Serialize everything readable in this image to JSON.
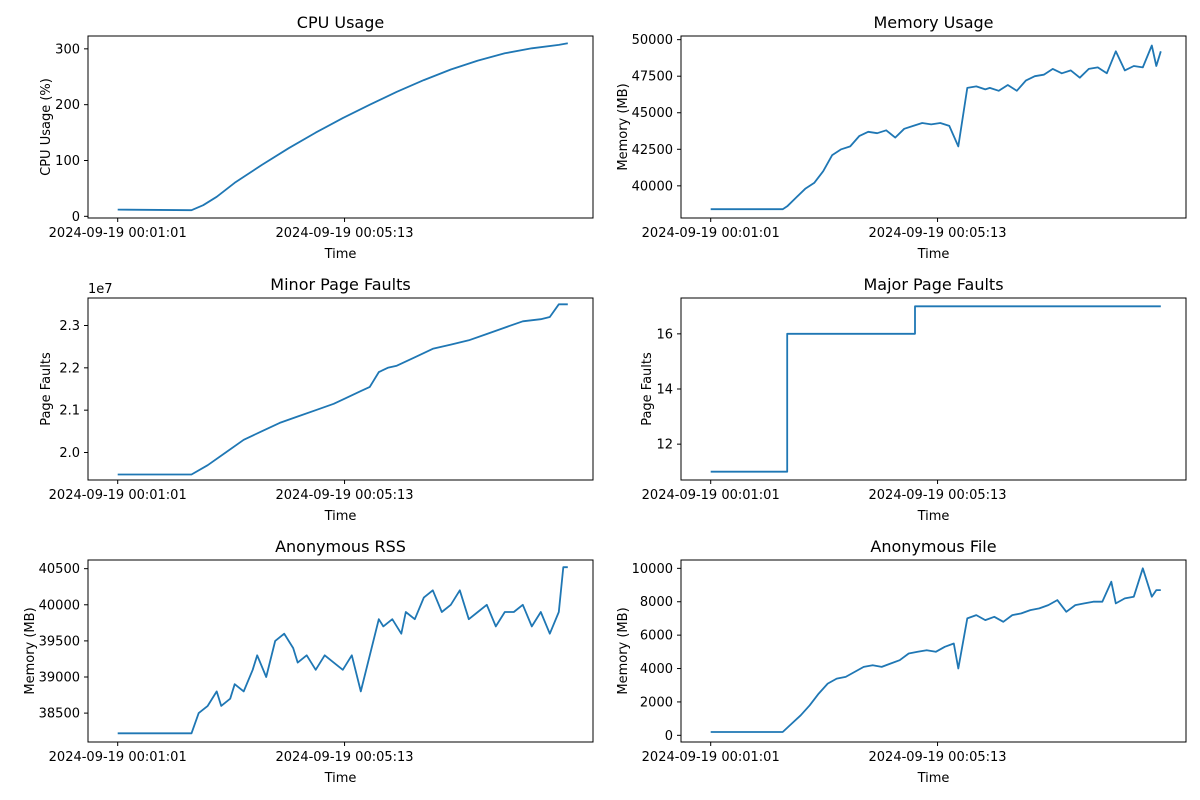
{
  "figure": {
    "background": "#ffffff",
    "line_color": "#1f77b4",
    "axis_color": "#000000"
  },
  "chart_data": [
    {
      "id": "cpu",
      "type": "line",
      "title": "CPU Usage",
      "xlabel": "Time",
      "ylabel": "CPU Usage (%)",
      "offset_text": "",
      "x_ticks": [
        {
          "x": 0,
          "label": "2024-09-19 00:01:01"
        },
        {
          "x": 252,
          "label": "2024-09-19 00:05:13"
        }
      ],
      "xlim": [
        -33,
        528
      ],
      "ylim": [
        -3,
        323
      ],
      "y_ticks": [
        0,
        100,
        200,
        300
      ],
      "y_tick_labels": [
        "0",
        "100",
        "200",
        "300"
      ],
      "series": [
        {
          "x": [
            0,
            82,
            95,
            110,
            130,
            160,
            190,
            220,
            250,
            280,
            310,
            340,
            370,
            400,
            430,
            460,
            490,
            500
          ],
          "y": [
            12,
            11,
            20,
            35,
            60,
            92,
            122,
            150,
            176,
            200,
            223,
            244,
            263,
            279,
            292,
            301,
            307,
            310
          ]
        }
      ]
    },
    {
      "id": "memory",
      "type": "line",
      "title": "Memory Usage",
      "xlabel": "Time",
      "ylabel": "Memory (MB)",
      "offset_text": "",
      "x_ticks": [
        {
          "x": 0,
          "label": "2024-09-19 00:01:01"
        },
        {
          "x": 252,
          "label": "2024-09-19 00:05:13"
        }
      ],
      "xlim": [
        -33,
        528
      ],
      "ylim": [
        37800,
        50250
      ],
      "y_ticks": [
        40000,
        42500,
        45000,
        47500,
        50000
      ],
      "y_tick_labels": [
        "40000",
        "42500",
        "45000",
        "47500",
        "50000"
      ],
      "series": [
        {
          "x": [
            0,
            80,
            85,
            95,
            105,
            115,
            125,
            135,
            145,
            155,
            165,
            175,
            185,
            195,
            205,
            215,
            225,
            235,
            245,
            255,
            265,
            275,
            285,
            295,
            305,
            310,
            320,
            330,
            340,
            350,
            360,
            370,
            380,
            390,
            400,
            410,
            420,
            430,
            440,
            450,
            460,
            470,
            480,
            490,
            495,
            500
          ],
          "y": [
            38400,
            38400,
            38600,
            39200,
            39800,
            40200,
            41000,
            42100,
            42500,
            42700,
            43400,
            43700,
            43600,
            43800,
            43300,
            43900,
            44100,
            44300,
            44200,
            44300,
            44100,
            42700,
            46700,
            46800,
            46600,
            46700,
            46500,
            46900,
            46500,
            47200,
            47500,
            47600,
            48000,
            47700,
            47900,
            47400,
            48000,
            48100,
            47700,
            49200,
            47900,
            48200,
            48100,
            49600,
            48200,
            49200
          ]
        }
      ]
    },
    {
      "id": "minor-faults",
      "type": "line",
      "title": "Minor Page Faults",
      "xlabel": "Time",
      "ylabel": "Page Faults",
      "offset_text": "1e7",
      "x_ticks": [
        {
          "x": 0,
          "label": "2024-09-19 00:01:01"
        },
        {
          "x": 252,
          "label": "2024-09-19 00:05:13"
        }
      ],
      "xlim": [
        -33,
        528
      ],
      "ylim": [
        19.35,
        23.65
      ],
      "y_ticks": [
        20.0,
        21.0,
        22.0,
        23.0
      ],
      "y_tick_labels": [
        "2.0",
        "2.1",
        "2.2",
        "2.3"
      ],
      "series": [
        {
          "x": [
            0,
            82,
            100,
            120,
            140,
            160,
            180,
            200,
            220,
            240,
            250,
            260,
            270,
            280,
            290,
            300,
            310,
            330,
            350,
            370,
            390,
            410,
            430,
            450,
            470,
            480,
            490,
            500
          ],
          "y": [
            19.48,
            19.48,
            19.7,
            20.0,
            20.3,
            20.5,
            20.7,
            20.85,
            21.0,
            21.15,
            21.25,
            21.35,
            21.45,
            21.55,
            21.9,
            22.0,
            22.05,
            22.25,
            22.45,
            22.55,
            22.65,
            22.8,
            22.95,
            23.1,
            23.15,
            23.2,
            23.5,
            23.5
          ]
        }
      ]
    },
    {
      "id": "major-faults",
      "type": "line",
      "title": "Major Page Faults",
      "xlabel": "Time",
      "ylabel": "Page Faults",
      "offset_text": "",
      "x_ticks": [
        {
          "x": 0,
          "label": "2024-09-19 00:01:01"
        },
        {
          "x": 252,
          "label": "2024-09-19 00:05:13"
        }
      ],
      "xlim": [
        -33,
        528
      ],
      "ylim": [
        10.7,
        17.3
      ],
      "y_ticks": [
        12,
        14,
        16
      ],
      "y_tick_labels": [
        "12",
        "14",
        "16"
      ],
      "series": [
        {
          "x": [
            0,
            85,
            85,
            227,
            227,
            500
          ],
          "y": [
            11,
            11,
            16,
            16,
            17,
            17
          ]
        }
      ]
    },
    {
      "id": "anon-rss",
      "type": "line",
      "title": "Anonymous RSS",
      "xlabel": "Time",
      "ylabel": "Memory (MB)",
      "offset_text": "",
      "x_ticks": [
        {
          "x": 0,
          "label": "2024-09-19 00:01:01"
        },
        {
          "x": 252,
          "label": "2024-09-19 00:05:13"
        }
      ],
      "xlim": [
        -33,
        528
      ],
      "ylim": [
        38100,
        40620
      ],
      "y_ticks": [
        38500,
        39000,
        39500,
        40000,
        40500
      ],
      "y_tick_labels": [
        "38500",
        "39000",
        "39500",
        "40000",
        "40500"
      ],
      "series": [
        {
          "x": [
            0,
            82,
            90,
            100,
            110,
            115,
            125,
            130,
            140,
            150,
            155,
            165,
            175,
            185,
            195,
            200,
            210,
            220,
            230,
            240,
            250,
            260,
            270,
            290,
            295,
            305,
            315,
            320,
            330,
            340,
            350,
            360,
            370,
            380,
            390,
            400,
            410,
            420,
            430,
            440,
            450,
            460,
            470,
            480,
            490,
            495,
            500
          ],
          "y": [
            38220,
            38220,
            38500,
            38600,
            38800,
            38600,
            38700,
            38900,
            38800,
            39100,
            39300,
            39000,
            39500,
            39600,
            39400,
            39200,
            39300,
            39100,
            39300,
            39200,
            39100,
            39300,
            38800,
            39800,
            39700,
            39800,
            39600,
            39900,
            39800,
            40100,
            40200,
            39900,
            40000,
            40200,
            39800,
            39900,
            40000,
            39700,
            39900,
            39900,
            40000,
            39700,
            39900,
            39600,
            39900,
            40520,
            40520
          ]
        }
      ]
    },
    {
      "id": "anon-file",
      "type": "line",
      "title": "Anonymous File",
      "xlabel": "Time",
      "ylabel": "Memory (MB)",
      "offset_text": "",
      "x_ticks": [
        {
          "x": 0,
          "label": "2024-09-19 00:01:01"
        },
        {
          "x": 252,
          "label": "2024-09-19 00:05:13"
        }
      ],
      "xlim": [
        -33,
        528
      ],
      "ylim": [
        -400,
        10500
      ],
      "y_ticks": [
        0,
        2000,
        4000,
        6000,
        8000,
        10000
      ],
      "y_tick_labels": [
        "0",
        "2000",
        "4000",
        "6000",
        "8000",
        "10000"
      ],
      "series": [
        {
          "x": [
            0,
            80,
            90,
            100,
            110,
            120,
            130,
            140,
            150,
            160,
            170,
            180,
            190,
            200,
            210,
            220,
            230,
            240,
            250,
            260,
            270,
            275,
            285,
            295,
            305,
            315,
            325,
            335,
            345,
            355,
            365,
            375,
            385,
            395,
            405,
            415,
            425,
            435,
            445,
            450,
            460,
            470,
            480,
            490,
            495,
            500
          ],
          "y": [
            200,
            200,
            700,
            1200,
            1800,
            2500,
            3100,
            3400,
            3500,
            3800,
            4100,
            4200,
            4100,
            4300,
            4500,
            4900,
            5000,
            5100,
            5000,
            5300,
            5500,
            4000,
            7000,
            7200,
            6900,
            7100,
            6800,
            7200,
            7300,
            7500,
            7600,
            7800,
            8100,
            7400,
            7800,
            7900,
            8000,
            8000,
            9200,
            7900,
            8200,
            8300,
            10000,
            8300,
            8700,
            8700
          ]
        }
      ]
    }
  ]
}
